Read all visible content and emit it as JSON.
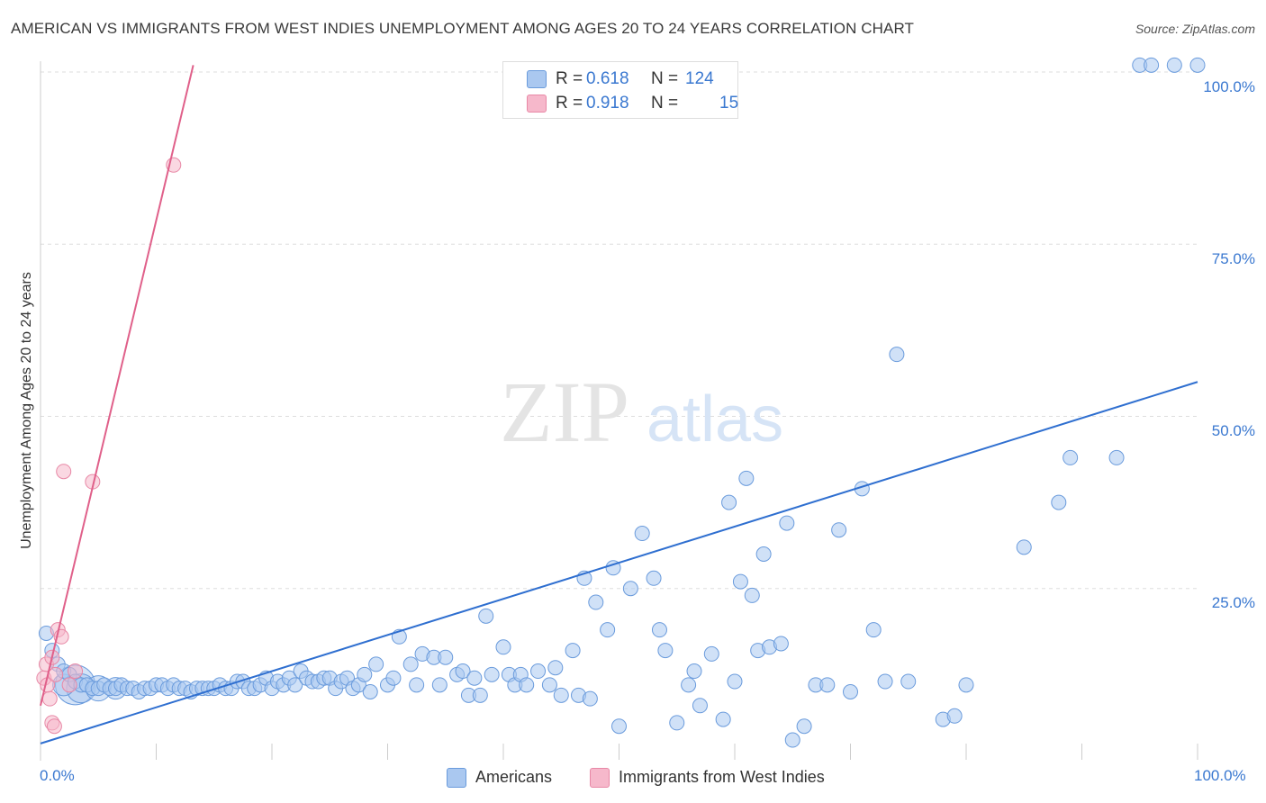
{
  "title": "AMERICAN VS IMMIGRANTS FROM WEST INDIES UNEMPLOYMENT AMONG AGES 20 TO 24 YEARS CORRELATION CHART",
  "source": "Source: ZipAtlas.com",
  "watermark": {
    "zip": "ZIP",
    "atlas": "atlas"
  },
  "legend_top": {
    "rows": [
      {
        "r_label": "R =",
        "r_value": "0.618",
        "n_label": "N =",
        "n_value": "124",
        "color": "#aac8f0"
      },
      {
        "r_label": "R =",
        "r_value": "0.918",
        "n_label": "N =",
        "n_value": "15",
        "color": "#f6b8cb"
      }
    ]
  },
  "legend_bottom": {
    "items": [
      {
        "label": "Americans",
        "color": "#aac8f0"
      },
      {
        "label": "Immigrants from West Indies",
        "color": "#f6b8cb"
      }
    ]
  },
  "colors": {
    "americans_fill": "#aac8f0",
    "americans_stroke": "#6a9bdc",
    "americans_line": "#2f6fd0",
    "immigrants_fill": "#f6b8cb",
    "immigrants_stroke": "#e888a6",
    "immigrants_line": "#e0608a",
    "tick_text": "#3a78d0",
    "grid": "#dddddd"
  },
  "chart_data": {
    "type": "scatter",
    "title": "AMERICAN VS IMMIGRANTS FROM WEST INDIES UNEMPLOYMENT AMONG AGES 20 TO 24 YEARS CORRELATION CHART",
    "xlabel": "",
    "ylabel": "Unemployment Among Ages 20 to 24 years",
    "xlim": [
      0,
      100
    ],
    "ylim": [
      0,
      100
    ],
    "x_tick_labels": [
      "0.0%",
      "100.0%"
    ],
    "y_tick_labels": [
      "100.0%",
      "75.0%",
      "50.0%",
      "25.0%"
    ],
    "y_ticks": [
      100,
      75,
      50,
      25
    ],
    "grid": true,
    "legend_position": "top-center",
    "series": [
      {
        "name": "Americans",
        "r": 0.618,
        "n": 124,
        "trend": [
          [
            0,
            2.5
          ],
          [
            100,
            55
          ]
        ],
        "points": [
          [
            0.5,
            18.5
          ],
          [
            1,
            16
          ],
          [
            1.5,
            14
          ],
          [
            2,
            13
          ],
          [
            2.5,
            12.5
          ],
          [
            3,
            11.5
          ],
          [
            3.5,
            11
          ],
          [
            4,
            11
          ],
          [
            4.5,
            10.5
          ],
          [
            5,
            10.5
          ],
          [
            5.5,
            11
          ],
          [
            6,
            10.5
          ],
          [
            6.5,
            10.5
          ],
          [
            7,
            11
          ],
          [
            7.5,
            10.5
          ],
          [
            8,
            10.5
          ],
          [
            8.5,
            10
          ],
          [
            9,
            10.5
          ],
          [
            9.5,
            10.5
          ],
          [
            10,
            11
          ],
          [
            10.5,
            11
          ],
          [
            11,
            10.5
          ],
          [
            11.5,
            11
          ],
          [
            12,
            10.5
          ],
          [
            12.5,
            10.5
          ],
          [
            13,
            10
          ],
          [
            13.5,
            10.5
          ],
          [
            14,
            10.5
          ],
          [
            14.5,
            10.5
          ],
          [
            15,
            10.5
          ],
          [
            15.5,
            11
          ],
          [
            16,
            10.5
          ],
          [
            16.5,
            10.5
          ],
          [
            17,
            11.5
          ],
          [
            17.5,
            11.5
          ],
          [
            18,
            10.5
          ],
          [
            18.5,
            10.5
          ],
          [
            19,
            11
          ],
          [
            19.5,
            12
          ],
          [
            20,
            10.5
          ],
          [
            20.5,
            11.5
          ],
          [
            21,
            11
          ],
          [
            21.5,
            12
          ],
          [
            22,
            11
          ],
          [
            22.5,
            13
          ],
          [
            23,
            12
          ],
          [
            23.5,
            11.5
          ],
          [
            24,
            11.5
          ],
          [
            24.5,
            12
          ],
          [
            25,
            12
          ],
          [
            25.5,
            10.5
          ],
          [
            26,
            11.5
          ],
          [
            26.5,
            12
          ],
          [
            27,
            10.5
          ],
          [
            27.5,
            11
          ],
          [
            28,
            12.5
          ],
          [
            28.5,
            10
          ],
          [
            29,
            14
          ],
          [
            30,
            11
          ],
          [
            30.5,
            12
          ],
          [
            31,
            18
          ],
          [
            32,
            14
          ],
          [
            32.5,
            11
          ],
          [
            33,
            15.5
          ],
          [
            34,
            15
          ],
          [
            34.5,
            11
          ],
          [
            35,
            15
          ],
          [
            36,
            12.5
          ],
          [
            36.5,
            13
          ],
          [
            37,
            9.5
          ],
          [
            37.5,
            12
          ],
          [
            38,
            9.5
          ],
          [
            38.5,
            21
          ],
          [
            39,
            12.5
          ],
          [
            40,
            16.5
          ],
          [
            40.5,
            12.5
          ],
          [
            41,
            11
          ],
          [
            41.5,
            12.5
          ],
          [
            42,
            11
          ],
          [
            43,
            13
          ],
          [
            44,
            11
          ],
          [
            44.5,
            13.5
          ],
          [
            45,
            9.5
          ],
          [
            46,
            16
          ],
          [
            46.5,
            9.5
          ],
          [
            47,
            26.5
          ],
          [
            47.5,
            9
          ],
          [
            48,
            23
          ],
          [
            49,
            19
          ],
          [
            49.5,
            28
          ],
          [
            50,
            5
          ],
          [
            51,
            25
          ],
          [
            52,
            33
          ],
          [
            53,
            26.5
          ],
          [
            53.5,
            19
          ],
          [
            54,
            16
          ],
          [
            55,
            5.5
          ],
          [
            56,
            11
          ],
          [
            56.5,
            13
          ],
          [
            57,
            8
          ],
          [
            58,
            15.5
          ],
          [
            59,
            6
          ],
          [
            59.5,
            37.5
          ],
          [
            60,
            11.5
          ],
          [
            60.5,
            26
          ],
          [
            61,
            41
          ],
          [
            61.5,
            24
          ],
          [
            62,
            16
          ],
          [
            62.5,
            30
          ],
          [
            63,
            16.5
          ],
          [
            64,
            17
          ],
          [
            64.5,
            34.5
          ],
          [
            65,
            3
          ],
          [
            66,
            5
          ],
          [
            67,
            11
          ],
          [
            68,
            11
          ],
          [
            69,
            33.5
          ],
          [
            70,
            10
          ],
          [
            71,
            39.5
          ],
          [
            72,
            19
          ],
          [
            73,
            11.5
          ],
          [
            74,
            59
          ],
          [
            75,
            11.5
          ],
          [
            78,
            6
          ],
          [
            79,
            6.5
          ],
          [
            80,
            11
          ],
          [
            85,
            31
          ],
          [
            88,
            37.5
          ],
          [
            89,
            44
          ],
          [
            93,
            44
          ],
          [
            95,
            101
          ],
          [
            96,
            101
          ],
          [
            98,
            101
          ],
          [
            100,
            101
          ]
        ]
      },
      {
        "name": "Immigrants from West Indies",
        "r": 0.918,
        "n": 15,
        "trend": [
          [
            0,
            8
          ],
          [
            13.2,
            101
          ]
        ],
        "points": [
          [
            0.3,
            12
          ],
          [
            0.5,
            14
          ],
          [
            0.8,
            9
          ],
          [
            1,
            5.5
          ],
          [
            1.2,
            5
          ],
          [
            1.5,
            19
          ],
          [
            1.8,
            18
          ],
          [
            2,
            42
          ],
          [
            2.5,
            11
          ],
          [
            3,
            13
          ],
          [
            4.5,
            40.5
          ],
          [
            11.5,
            86.5
          ],
          [
            1,
            15
          ],
          [
            0.6,
            11
          ],
          [
            1.3,
            12.5
          ]
        ]
      }
    ]
  }
}
